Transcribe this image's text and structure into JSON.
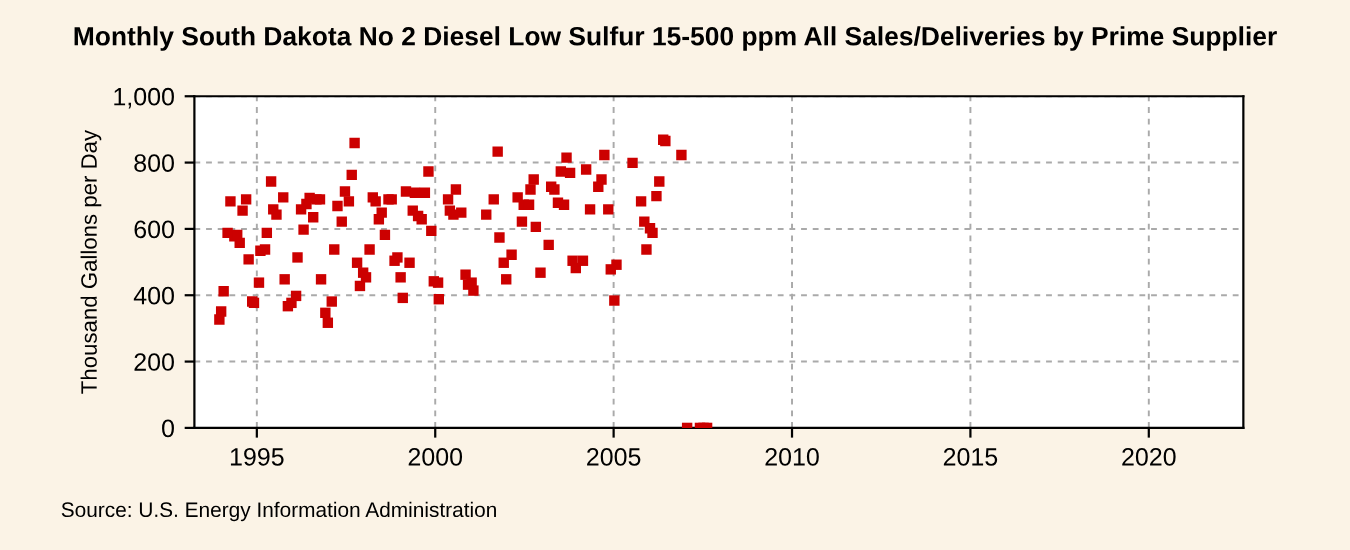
{
  "chart_data": {
    "type": "scatter",
    "title": "Monthly South Dakota No 2 Diesel Low Sulfur 15-500 ppm All Sales/Deliveries by Prime Supplier",
    "ylabel": "Thousand Gallons per Day",
    "x": [
      1993.95,
      1994.0,
      1994.07,
      1994.18,
      1994.26,
      1994.37,
      1994.45,
      1994.52,
      1994.6,
      1994.7,
      1994.77,
      1994.87,
      1994.92,
      1995.06,
      1995.1,
      1995.23,
      1995.28,
      1995.4,
      1995.46,
      1995.55,
      1995.74,
      1995.78,
      1995.87,
      1995.97,
      1996.1,
      1996.14,
      1996.24,
      1996.31,
      1996.39,
      1996.48,
      1996.58,
      1996.67,
      1996.77,
      1996.8,
      1996.92,
      1996.99,
      1997.1,
      1997.17,
      1997.26,
      1997.38,
      1997.47,
      1997.58,
      1997.66,
      1997.74,
      1997.81,
      1997.89,
      1997.98,
      1998.06,
      1998.16,
      1998.25,
      1998.33,
      1998.42,
      1998.5,
      1998.59,
      1998.69,
      1998.78,
      1998.86,
      1998.94,
      1999.03,
      1999.09,
      1999.18,
      1999.28,
      1999.37,
      1999.43,
      1999.52,
      1999.62,
      1999.71,
      1999.81,
      1999.89,
      1999.96,
      2000.08,
      2000.1,
      2000.36,
      2000.41,
      2000.51,
      2000.58,
      2000.73,
      2000.85,
      2000.92,
      2001.02,
      2001.07,
      2001.43,
      2001.64,
      2001.75,
      2001.8,
      2001.92,
      2001.99,
      2002.14,
      2002.31,
      2002.43,
      2002.48,
      2002.63,
      2002.67,
      2002.76,
      2002.82,
      2002.95,
      2003.18,
      2003.25,
      2003.34,
      2003.44,
      2003.52,
      2003.61,
      2003.68,
      2003.78,
      2003.85,
      2003.94,
      2004.14,
      2004.23,
      2004.34,
      2004.57,
      2004.66,
      2004.74,
      2004.85,
      2004.92,
      2005.02,
      2005.08,
      2005.53,
      2005.77,
      2005.86,
      2005.92,
      2006.02,
      2006.09,
      2006.2,
      2006.28,
      2006.39,
      2006.45,
      2006.9,
      2007.06,
      2007.42,
      2007.52,
      2007.62
    ],
    "values": [
      327,
      351,
      412,
      588,
      683,
      578,
      582,
      558,
      655,
      689,
      508,
      381,
      377,
      438,
      534,
      538,
      588,
      743,
      659,
      643,
      695,
      448,
      367,
      377,
      398,
      514,
      659,
      598,
      675,
      693,
      635,
      689,
      689,
      448,
      347,
      317,
      381,
      538,
      669,
      622,
      713,
      683,
      763,
      859,
      498,
      428,
      468,
      454,
      538,
      695,
      683,
      629,
      649,
      582,
      689,
      689,
      504,
      514,
      454,
      392,
      713,
      498,
      655,
      709,
      639,
      629,
      709,
      773,
      594,
      442,
      438,
      388,
      689,
      655,
      643,
      719,
      649,
      462,
      432,
      438,
      414,
      643,
      689,
      833,
      574,
      498,
      448,
      522,
      695,
      622,
      673,
      673,
      719,
      749,
      606,
      468,
      552,
      727,
      719,
      679,
      773,
      673,
      815,
      769,
      504,
      482,
      504,
      779,
      659,
      727,
      749,
      823,
      659,
      478,
      384,
      492,
      799,
      683,
      622,
      538,
      602,
      588,
      699,
      743,
      869,
      865,
      823,
      0,
      0,
      0,
      0
    ],
    "color": "#cc0000",
    "marker": "square",
    "xlim": [
      1993.25,
      2022.65
    ],
    "ylim": [
      0,
      1000
    ],
    "xticks": [
      1995,
      2000,
      2005,
      2010,
      2015,
      2020
    ],
    "yticks": [
      0,
      200,
      400,
      600,
      800,
      {
        "value": 1000,
        "label": "1,000"
      }
    ],
    "grid": true,
    "annotations": [
      "Source: U.S. Energy Information Administration"
    ]
  }
}
